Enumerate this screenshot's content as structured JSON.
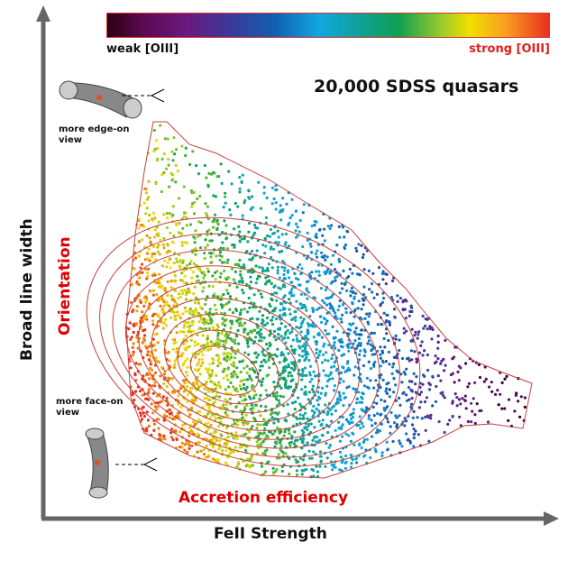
{
  "colorbar": {
    "low_label": "weak [OIII]",
    "high_label": "strong [OIII]",
    "colors": [
      "#2a0010",
      "#6a1a80",
      "#1060b0",
      "#10a8e0",
      "#10a050",
      "#f0e000",
      "#e83020"
    ]
  },
  "title": "20,000 SDSS quasars",
  "x_axis_label": "FeII Strength",
  "y_axis_label": "Broad line width",
  "arrow_labels": {
    "vertical": "Orientation",
    "horizontal": "Accretion efficiency"
  },
  "annotations": {
    "edge_on": "more edge-on\nview",
    "face_on": "more face-on\nview"
  },
  "contour_color": "#c84040",
  "accent_text_color": "#e00000"
}
